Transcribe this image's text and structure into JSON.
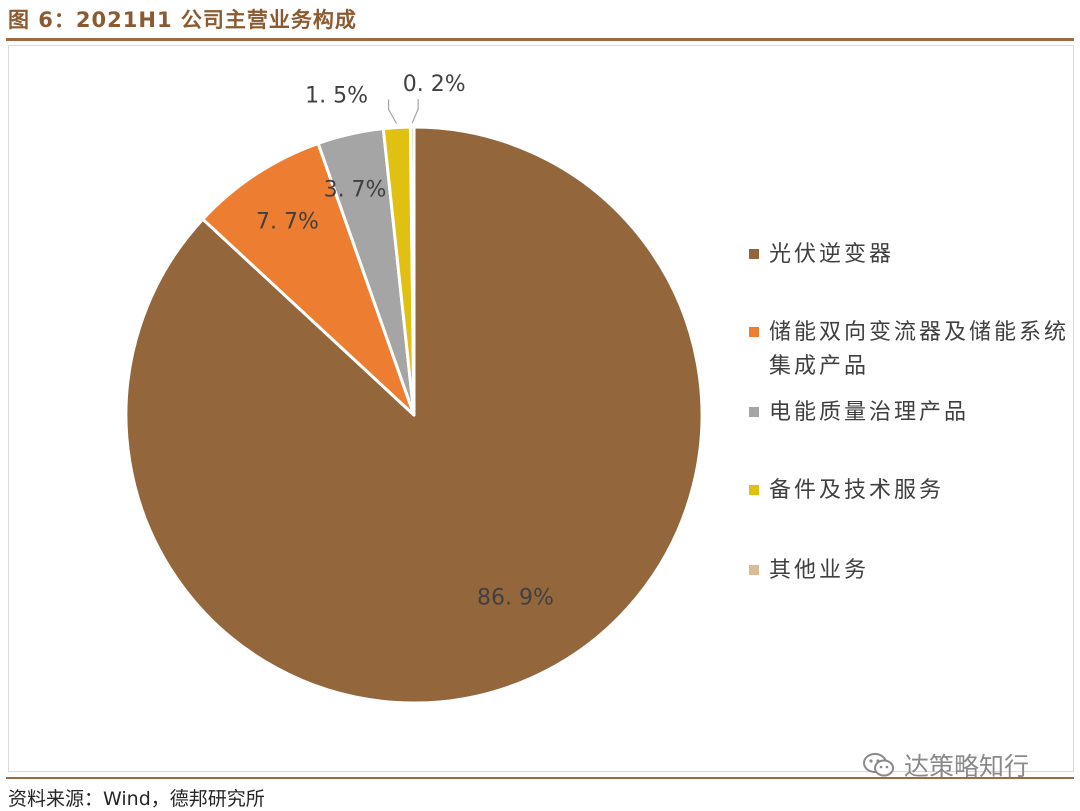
{
  "figure": {
    "title": "图 6：2021H1 公司主营业务构成",
    "source": "资料来源：Wind，德邦研究所",
    "watermark": "达策略知行"
  },
  "chart_data": {
    "type": "pie",
    "start_angle": "12 o'clock, clockwise",
    "legend_position": "right",
    "slices": [
      {
        "name": "光伏逆变器",
        "value": 86.9,
        "label": "86. 9%",
        "color": "#94663c"
      },
      {
        "name": "储能双向变流器及储能系统集成产品",
        "value": 7.7,
        "label": "7. 7%",
        "color": "#ed7d31"
      },
      {
        "name": "电能质量治理产品",
        "value": 3.7,
        "label": "3. 7%",
        "color": "#a5a5a5"
      },
      {
        "name": "备件及技术服务",
        "value": 1.5,
        "label": "1. 5%",
        "color": "#e0c010"
      },
      {
        "name": "其他业务",
        "value": 0.2,
        "label": "0. 2%",
        "color": "#d9bc94"
      }
    ]
  },
  "colors": {
    "title": "#8c5a30",
    "rule": "#9a6b45",
    "label_text": "#404040"
  }
}
